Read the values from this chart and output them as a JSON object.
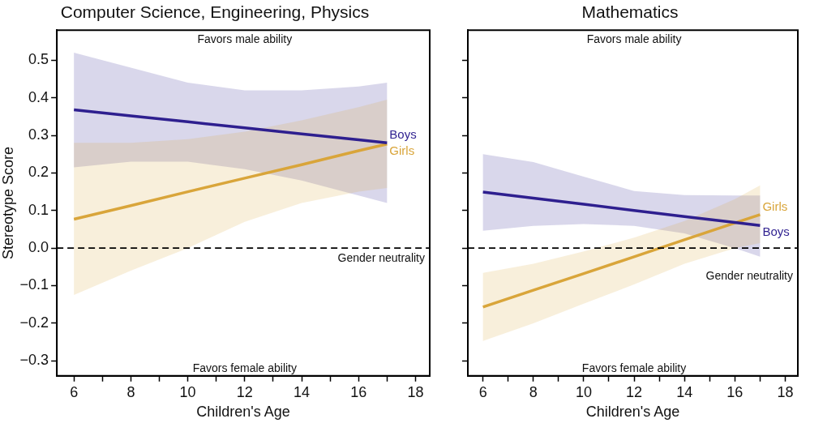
{
  "chart_data": [
    {
      "type": "line",
      "title": "Computer Science, Engineering, Physics",
      "xlabel": "Children's Age",
      "ylabel": "Stereotype Score",
      "xlim": [
        5.4,
        18.5
      ],
      "ylim": [
        -0.34,
        0.58
      ],
      "xticks": [
        6,
        {
          "value": 7,
          "label": null
        },
        8,
        {
          "value": 9,
          "label": null
        },
        10,
        {
          "value": 11,
          "label": null
        },
        12,
        {
          "value": 13,
          "label": null
        },
        14,
        {
          "value": 15,
          "label": null
        },
        16,
        {
          "value": 17,
          "label": null
        },
        18
      ],
      "yticks": [
        {
          "value": -0.3,
          "label": "−0.3"
        },
        {
          "value": -0.2,
          "label": "−0.2"
        },
        {
          "value": -0.1,
          "label": "−0.1"
        },
        {
          "value": 0,
          "label": "0.0"
        },
        0.1,
        0.2,
        0.3,
        0.4,
        0.5
      ],
      "grid": false,
      "legend": false,
      "line_style": "solid",
      "marker": "none",
      "annotations": [
        "Favors male ability",
        "Favors female ability"
      ],
      "ref_lines": [
        {
          "axis": "y",
          "value": 0,
          "label": "Gender neutrality",
          "color": "#000000",
          "line_style": "dashed"
        }
      ],
      "series": [
        {
          "name": "Boys",
          "color": "#2e1f8f",
          "x": [
            6,
            8,
            10,
            12,
            14,
            16,
            17
          ],
          "values": [
            0.368,
            0.352,
            0.336,
            0.32,
            0.304,
            0.288,
            0.28
          ],
          "upper": [
            0.52,
            0.48,
            0.44,
            0.42,
            0.42,
            0.43,
            0.44
          ],
          "lower": [
            0.215,
            0.23,
            0.23,
            0.21,
            0.18,
            0.14,
            0.12
          ]
        },
        {
          "name": "Girls",
          "color": "#d9a53a",
          "x": [
            6,
            8,
            10,
            12,
            14,
            16,
            17
          ],
          "values": [
            0.077,
            0.113,
            0.15,
            0.186,
            0.222,
            0.259,
            0.277
          ],
          "upper": [
            0.28,
            0.28,
            0.29,
            0.31,
            0.34,
            0.375,
            0.395
          ],
          "lower": [
            -0.125,
            -0.06,
            0.0,
            0.07,
            0.12,
            0.15,
            0.16
          ]
        }
      ]
    },
    {
      "type": "line",
      "title": "Mathematics",
      "xlabel": "Children's Age",
      "xlim": [
        5.4,
        18.5
      ],
      "ylim": [
        -0.34,
        0.58
      ],
      "tick_labels": "x",
      "xticks": [
        6,
        {
          "value": 7,
          "label": null
        },
        8,
        {
          "value": 9,
          "label": null
        },
        10,
        {
          "value": 11,
          "label": null
        },
        12,
        {
          "value": 13,
          "label": null
        },
        14,
        {
          "value": 15,
          "label": null
        },
        16,
        {
          "value": 17,
          "label": null
        },
        18
      ],
      "yticks": [
        -0.3,
        -0.2,
        -0.1,
        0,
        0.1,
        0.2,
        0.3,
        0.4,
        0.5
      ],
      "grid": false,
      "legend": false,
      "line_style": "solid",
      "marker": "none",
      "annotations": [
        "Favors male ability",
        "Favors female ability"
      ],
      "ref_lines": [
        {
          "axis": "y",
          "value": 0,
          "label": "Gender neutrality",
          "color": "#000000",
          "line_style": "dashed"
        }
      ],
      "series": [
        {
          "name": "Boys",
          "color": "#2e1f8f",
          "x": [
            6,
            8,
            10,
            12,
            14,
            16,
            17
          ],
          "values": [
            0.149,
            0.133,
            0.117,
            0.1,
            0.084,
            0.068,
            0.06
          ],
          "upper": [
            0.25,
            0.229,
            0.19,
            0.152,
            0.141,
            0.14,
            0.14
          ],
          "lower": [
            0.046,
            0.059,
            0.064,
            0.059,
            0.039,
            0.0,
            -0.023
          ]
        },
        {
          "name": "Girls",
          "color": "#d9a53a",
          "x": [
            6,
            8,
            10,
            12,
            14,
            16,
            17
          ],
          "values": [
            -0.157,
            -0.112,
            -0.068,
            -0.023,
            0.022,
            0.067,
            0.089
          ],
          "upper": [
            -0.066,
            -0.042,
            -0.009,
            0.028,
            0.072,
            0.13,
            0.167
          ],
          "lower": [
            -0.247,
            -0.2,
            -0.148,
            -0.097,
            -0.042,
            0.0,
            0.013
          ]
        }
      ]
    }
  ]
}
